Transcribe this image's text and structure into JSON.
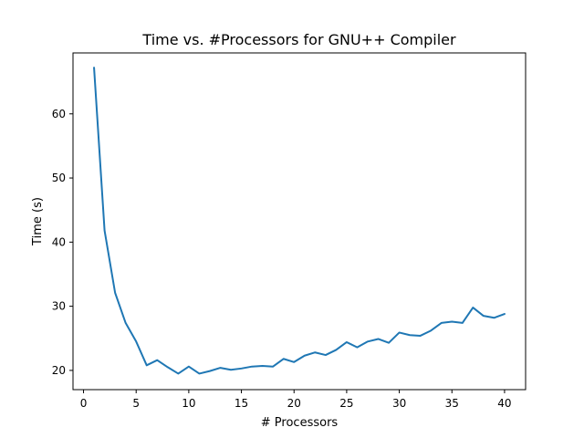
{
  "chart_data": {
    "type": "line",
    "title": "Time vs. #Processors for GNU++ Compiler",
    "xlabel": "# Processors",
    "ylabel": "Time (s)",
    "xlim": [
      -1,
      42
    ],
    "ylim": [
      17.0,
      69.5
    ],
    "xticks": [
      0,
      5,
      10,
      15,
      20,
      25,
      30,
      35,
      40
    ],
    "yticks": [
      20,
      30,
      40,
      50,
      60
    ],
    "grid": false,
    "series": [
      {
        "color": "#1f77b4",
        "x": [
          1,
          2,
          3,
          4,
          5,
          6,
          7,
          8,
          9,
          10,
          11,
          12,
          13,
          14,
          15,
          16,
          17,
          18,
          19,
          20,
          21,
          22,
          23,
          24,
          25,
          26,
          27,
          28,
          29,
          30,
          31,
          32,
          33,
          34,
          35,
          36,
          37,
          38,
          39,
          40
        ],
        "y": [
          67.2,
          41.8,
          32.1,
          27.4,
          24.5,
          20.8,
          21.6,
          20.5,
          19.5,
          20.6,
          19.5,
          19.9,
          20.4,
          20.1,
          20.3,
          20.6,
          20.7,
          20.6,
          21.8,
          21.3,
          22.3,
          22.8,
          22.4,
          23.2,
          24.4,
          23.6,
          24.5,
          24.9,
          24.3,
          25.9,
          25.5,
          25.4,
          26.2,
          27.4,
          27.6,
          27.4,
          29.8,
          28.5,
          28.2,
          28.8
        ]
      }
    ]
  }
}
